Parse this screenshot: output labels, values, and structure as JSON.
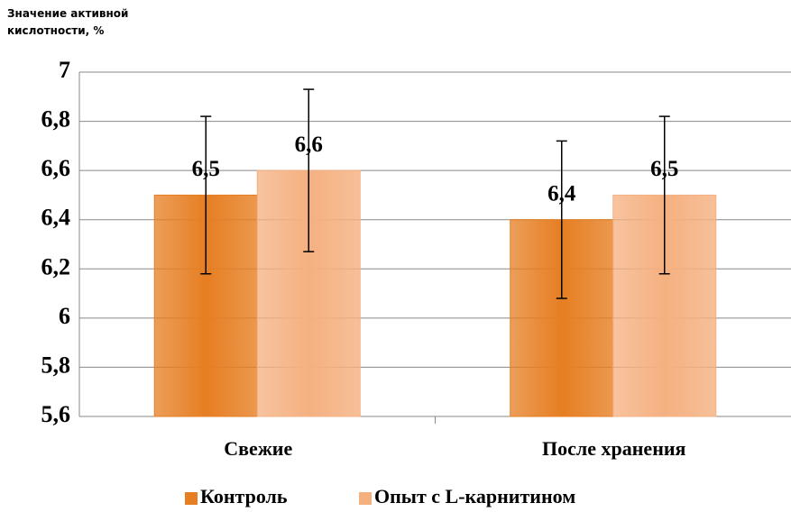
{
  "chart_data": {
    "type": "bar",
    "y_axis_label": "Значение активной кислотности, %",
    "categories": [
      "Свежие",
      "После хранения"
    ],
    "series": [
      {
        "name": "Контроль",
        "color": "#e67e22",
        "values": [
          6.5,
          6.4
        ],
        "value_labels": [
          "6,5",
          "6,4"
        ],
        "errors": [
          0.32,
          0.32
        ]
      },
      {
        "name": "Опыт с L-карнитином",
        "color": "#f5b080",
        "values": [
          6.6,
          6.5
        ],
        "value_labels": [
          "6,6",
          "6,5"
        ],
        "errors": [
          0.33,
          0.32
        ]
      }
    ],
    "ylim": [
      5.6,
      7
    ],
    "yticks": [
      {
        "value": 5.6,
        "label": "5,6"
      },
      {
        "value": 5.8,
        "label": "5,8"
      },
      6,
      {
        "value": 6.2,
        "label": "6,2"
      },
      {
        "value": 6.4,
        "label": "6,4"
      },
      {
        "value": 6.6,
        "label": "6,6"
      },
      {
        "value": 6.8,
        "label": "6,8"
      },
      7
    ],
    "grid": true,
    "legend": "bottom"
  }
}
